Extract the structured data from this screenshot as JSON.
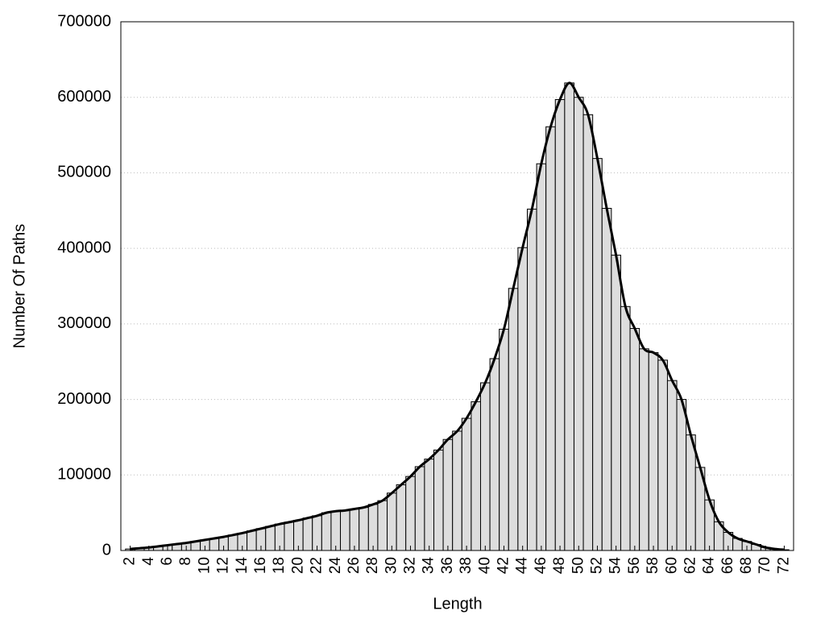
{
  "chart_data": {
    "type": "histogram",
    "x_label": "Length",
    "y_label": "Number Of Paths",
    "x": [
      2,
      3,
      4,
      5,
      6,
      7,
      8,
      9,
      10,
      11,
      12,
      13,
      14,
      15,
      16,
      17,
      18,
      19,
      20,
      21,
      22,
      23,
      24,
      25,
      26,
      27,
      28,
      29,
      30,
      31,
      32,
      33,
      34,
      35,
      36,
      37,
      38,
      39,
      40,
      41,
      42,
      43,
      44,
      45,
      46,
      47,
      48,
      49,
      50,
      51,
      52,
      53,
      54,
      55,
      56,
      57,
      58,
      59,
      60,
      61,
      62,
      63,
      64,
      65,
      66,
      67,
      68,
      69,
      70,
      71,
      72
    ],
    "values": [
      2000,
      3000,
      4000,
      5500,
      7000,
      8500,
      10000,
      12000,
      14000,
      16000,
      18000,
      20500,
      23000,
      26000,
      29000,
      32000,
      35000,
      37500,
      40000,
      43000,
      46000,
      50000,
      52000,
      53000,
      55000,
      57000,
      61000,
      66000,
      76000,
      87000,
      98000,
      111000,
      121000,
      133000,
      147000,
      158000,
      175000,
      197000,
      222000,
      254000,
      293000,
      347000,
      401000,
      452000,
      512000,
      561000,
      597000,
      619000,
      600000,
      577000,
      519000,
      453000,
      391000,
      323000,
      294000,
      267000,
      262000,
      252000,
      225000,
      200000,
      153000,
      110000,
      67000,
      38000,
      24000,
      16000,
      12000,
      8000,
      4000,
      2000,
      1000
    ],
    "color": "#dddddd",
    "line_color": "#000000",
    "smooth_line": true,
    "xlim": [
      1,
      73
    ],
    "xticks": [
      2,
      4,
      6,
      8,
      10,
      12,
      14,
      16,
      18,
      20,
      22,
      24,
      26,
      28,
      30,
      32,
      34,
      36,
      38,
      40,
      42,
      44,
      46,
      48,
      50,
      52,
      54,
      56,
      58,
      60,
      62,
      64,
      66,
      68,
      70,
      72
    ],
    "ylim": [
      0,
      700000
    ],
    "yticks": [
      0,
      100000,
      200000,
      300000,
      400000,
      500000,
      600000,
      700000
    ],
    "grid": true
  }
}
